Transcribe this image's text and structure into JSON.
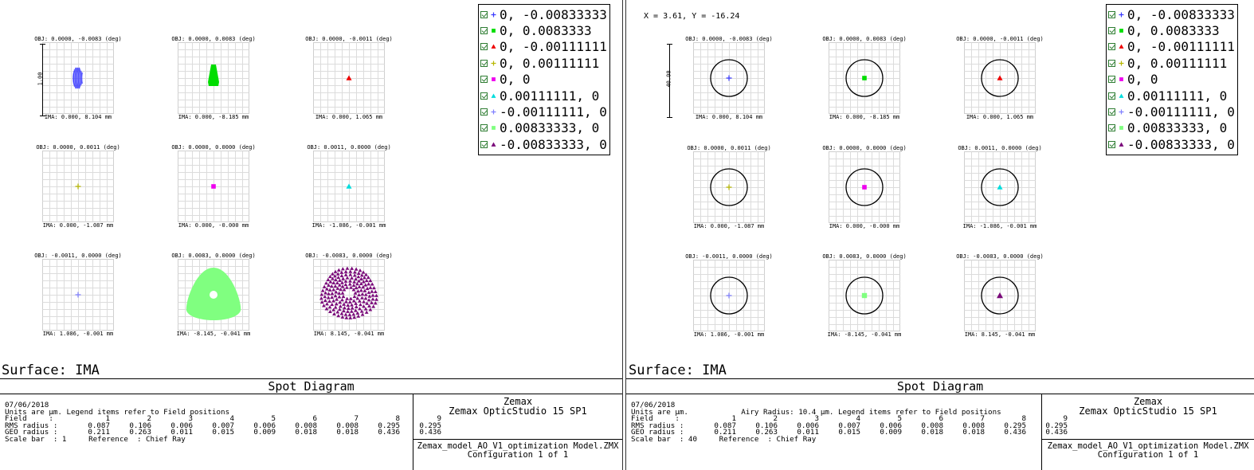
{
  "panels": [
    {
      "id": "left",
      "coords": "",
      "scale_label": "1.00",
      "cells": [
        {
          "obj": "OBJ: 0.0000, -0.0083 (deg)",
          "ima": "IMA: 0.000, 8.104 mm"
        },
        {
          "obj": "OBJ: 0.0000, 0.0083 (deg)",
          "ima": "IMA: 0.000, -8.185 mm"
        },
        {
          "obj": "OBJ: 0.0000, -0.0011 (deg)",
          "ima": "IMA: 0.000, 1.065 mm"
        },
        {
          "obj": "OBJ: 0.0000, 0.0011 (deg)",
          "ima": "IMA: 0.000, -1.087 mm"
        },
        {
          "obj": "OBJ: 0.0000, 0.0000 (deg)",
          "ima": "IMA: 0.000, -0.000 mm"
        },
        {
          "obj": "OBJ: 0.0011, 0.0000 (deg)",
          "ima": "IMA: -1.086, -0.001 mm"
        },
        {
          "obj": "OBJ: -0.0011, 0.0000 (deg)",
          "ima": "IMA: 1.086, -0.001 mm"
        },
        {
          "obj": "OBJ: 0.0083, 0.0000 (deg)",
          "ima": "IMA: -8.145, -0.041 mm"
        },
        {
          "obj": "OBJ: -0.0083, 0.0000 (deg)",
          "ima": "IMA: 8.145, -0.041 mm"
        }
      ],
      "surface": "Surface: IMA",
      "title": "Spot Diagram",
      "date": "07/06/2018",
      "units_line": "Units are µm. Legend items refer to Field positions",
      "field_label": "Field     :",
      "rms_label": "RMS radius :",
      "geo_label": "GEO radius :",
      "scale_line": "Scale bar  : 1     Reference  : Chief Ray",
      "brand": "Zemax",
      "product": "Zemax OpticStudio 15 SP1",
      "file": "Zemax_model_AO_V1_optimization Model.ZMX",
      "config": "Configuration 1 of 1"
    },
    {
      "id": "right",
      "coords": "X = 3.61, Y = -16.24",
      "scale_label": "40.00",
      "cells": [
        {
          "obj": "OBJ: 0.0000, -0.0083 (deg)",
          "ima": "IMA: 0.000, 8.104 mm"
        },
        {
          "obj": "OBJ: 0.0000, 0.0083 (deg)",
          "ima": "IMA: 0.000, -8.185 mm"
        },
        {
          "obj": "OBJ: 0.0000, -0.0011 (deg)",
          "ima": "IMA: 0.000, 1.065 mm"
        },
        {
          "obj": "OBJ: 0.0000, 0.0011 (deg)",
          "ima": "IMA: 0.000, -1.087 mm"
        },
        {
          "obj": "OBJ: 0.0000, 0.0000 (deg)",
          "ima": "IMA: 0.000, -0.000 mm"
        },
        {
          "obj": "OBJ: 0.0011, 0.0000 (deg)",
          "ima": "IMA: -1.086, -0.001 mm"
        },
        {
          "obj": "OBJ: -0.0011, 0.0000 (deg)",
          "ima": "IMA: 1.086, -0.001 mm"
        },
        {
          "obj": "OBJ: 0.0083, 0.0000 (deg)",
          "ima": "IMA: -8.145, -0.041 mm"
        },
        {
          "obj": "OBJ: -0.0083, 0.0000 (deg)",
          "ima": "IMA: 8.145, -0.041 mm"
        }
      ],
      "surface": "Surface: IMA",
      "title": "Spot Diagram",
      "date": "07/06/2018",
      "units_line": "Units are µm.            Airy Radius: 10.4 µm. Legend items refer to Field positions",
      "field_label": "Field     :",
      "rms_label": "RMS radius :",
      "geo_label": "GEO radius :",
      "scale_line": "Scale bar  : 40     Reference  : Chief Ray",
      "brand": "Zemax",
      "product": "Zemax OpticStudio 15 SP1",
      "file": "Zemax_model_AO_V1_optimization Model.ZMX",
      "config": "Configuration 1 of 1"
    }
  ],
  "legend": [
    {
      "label": "0, -0.00833333",
      "symbol": "plus",
      "color": "#3a3aff"
    },
    {
      "label": "0, 0.0083333",
      "symbol": "square",
      "color": "#00dd00"
    },
    {
      "label": "0, -0.00111111",
      "symbol": "triangle",
      "color": "#ee0000"
    },
    {
      "label": "0, 0.00111111",
      "symbol": "plus",
      "color": "#b8b800"
    },
    {
      "label": "0, 0",
      "symbol": "square",
      "color": "#ee00ee"
    },
    {
      "label": "0.00111111, 0",
      "symbol": "triangle",
      "color": "#00dddd"
    },
    {
      "label": "-0.00111111, 0",
      "symbol": "plus",
      "color": "#8080ff"
    },
    {
      "label": "0.00833333, 0",
      "symbol": "square",
      "color": "#80ff80"
    },
    {
      "label": "-0.00833333, 0",
      "symbol": "triangle",
      "color": "#7a0a7a"
    }
  ],
  "table": {
    "fields": [
      "1",
      "2",
      "3",
      "4",
      "5",
      "6",
      "7",
      "8",
      "9"
    ],
    "rms": [
      "0.087",
      "0.106",
      "0.006",
      "0.007",
      "0.006",
      "0.008",
      "0.008",
      "0.295",
      "0.295"
    ],
    "geo": [
      "0.211",
      "0.263",
      "0.011",
      "0.015",
      "0.009",
      "0.018",
      "0.018",
      "0.436",
      "0.436"
    ]
  }
}
